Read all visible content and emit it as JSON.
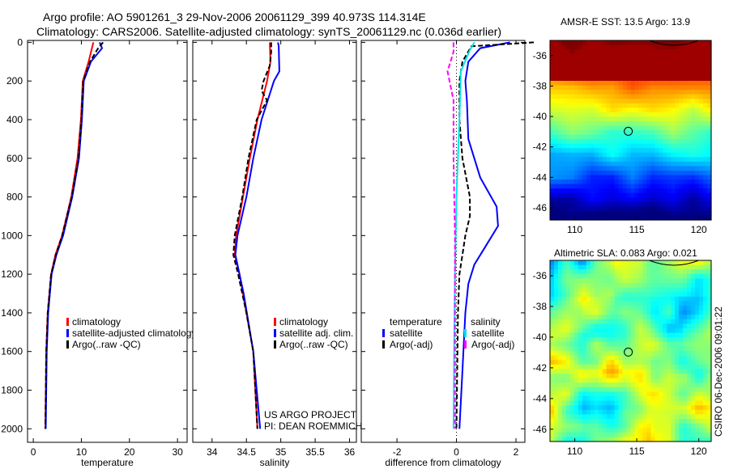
{
  "title_line1": "Argo profile: AO 5901261_3 29-Nov-2006 20061129_399 40.973S 114.314E",
  "title_line2": "Climatology: CARS2006. Satellite-adjusted climatology: synTS_20061129.nc (0.036d earlier)",
  "side_stamp": "CSIRO 06-Dec-2006 09:01:22",
  "project_line1": "US ARGO PROJECT",
  "project_line2": "PI: DEAN ROEMMICH",
  "colors": {
    "climatology": "#ff0000",
    "satellite": "#0000ff",
    "argo": "#000000",
    "sal_satellite": "#00e5e5",
    "sal_argo": "#ff00ff"
  },
  "chart_data": [
    {
      "type": "line",
      "xlabel": "temperature",
      "xlim": [
        -1.2,
        32
      ],
      "ylim": [
        2070,
        -10
      ],
      "xticks": [
        "0",
        "10",
        "20",
        "30"
      ],
      "xtickvals": [
        0,
        10,
        20,
        30
      ],
      "yticks": [
        "0",
        "200",
        "400",
        "600",
        "800",
        "1000",
        "1200",
        "1400",
        "1600",
        "1800",
        "2000"
      ],
      "legend": [
        "climatology",
        "satellite-adjusted climatology",
        "Argo(..raw -QC)"
      ],
      "series": [
        {
          "name": "climatology",
          "color": "#ff0000",
          "depth": [
            0,
            100,
            200,
            400,
            600,
            800,
            1000,
            1100,
            1200,
            1400,
            1600,
            2000
          ],
          "values": [
            12.5,
            11.5,
            10.3,
            9.9,
            9.2,
            7.9,
            6.0,
            4.6,
            3.7,
            3.0,
            2.7,
            2.5
          ]
        },
        {
          "name": "satellite",
          "color": "#0000ff",
          "depth": [
            0,
            30,
            100,
            200,
            400,
            600,
            800,
            1000,
            1100,
            1200,
            1400,
            1600,
            2000
          ],
          "values": [
            13.8,
            14.3,
            12.0,
            10.5,
            10.1,
            9.5,
            8.1,
            6.2,
            4.8,
            3.8,
            3.1,
            2.8,
            2.6
          ]
        },
        {
          "name": "argo",
          "color": "#000000",
          "dash": true,
          "depth": [
            0,
            30,
            100,
            200,
            400,
            600,
            800,
            1000,
            1100,
            1200,
            1400,
            1600,
            2000
          ],
          "values": [
            14.5,
            13.5,
            11.8,
            10.4,
            10.0,
            9.4,
            8.0,
            6.0,
            4.7,
            3.7,
            3.0,
            2.7,
            2.5
          ]
        }
      ]
    },
    {
      "type": "line",
      "xlabel": "salinity",
      "xlim": [
        33.72,
        36.1
      ],
      "ylim": [
        2070,
        -10
      ],
      "xticks": [
        "34",
        "34.5",
        "35",
        "35.5",
        "36"
      ],
      "xtickvals": [
        34,
        34.5,
        35,
        35.5,
        36
      ],
      "legend": [
        "climatology",
        "satellite adj. clim.",
        "Argo(..raw -QC)"
      ],
      "series": [
        {
          "name": "climatology",
          "color": "#ff0000",
          "depth": [
            0,
            100,
            200,
            400,
            600,
            800,
            1000,
            1100,
            1200,
            1400,
            1600,
            2000
          ],
          "values": [
            34.84,
            34.85,
            34.8,
            34.66,
            34.55,
            34.45,
            34.35,
            34.33,
            34.4,
            34.5,
            34.6,
            34.66
          ]
        },
        {
          "name": "satellite",
          "color": "#0000ff",
          "depth": [
            0,
            20,
            150,
            200,
            400,
            600,
            800,
            1000,
            1100,
            1300,
            1600,
            2000
          ],
          "values": [
            34.96,
            34.97,
            34.98,
            34.9,
            34.72,
            34.6,
            34.5,
            34.37,
            34.34,
            34.46,
            34.6,
            34.7
          ]
        },
        {
          "name": "argo",
          "color": "#000000",
          "dash": true,
          "depth": [
            0,
            50,
            120,
            200,
            250,
            300,
            400,
            600,
            800,
            1000,
            1100,
            1200,
            1400,
            1600,
            2000
          ],
          "values": [
            34.86,
            34.86,
            34.84,
            34.75,
            34.72,
            34.8,
            34.65,
            34.53,
            34.44,
            34.33,
            34.31,
            34.38,
            34.5,
            34.6,
            34.66
          ]
        }
      ]
    },
    {
      "type": "line",
      "xlabel": "difference from climatology",
      "xlim": [
        -3.2,
        2.3
      ],
      "ylim": [
        2070,
        -10
      ],
      "xticks": [
        "-2",
        "0",
        "2"
      ],
      "xtickvals": [
        -2,
        0,
        2
      ],
      "legend": {
        "temperature_head": "temperature",
        "salinity_head": "salinity",
        "items": [
          "satellite",
          "Argo(-adj)",
          "satellite",
          "Argo(-adj)"
        ]
      },
      "series": [
        {
          "name": "temperature satellite",
          "color": "#0000ff",
          "depth": [
            0,
            30,
            100,
            200,
            300,
            500,
            700,
            850,
            950,
            1050,
            1150,
            1250,
            1400,
            1700,
            2000
          ],
          "values": [
            1.8,
            0.8,
            0.4,
            0.3,
            0.35,
            0.4,
            0.8,
            1.35,
            1.4,
            1.0,
            0.6,
            0.4,
            0.3,
            0.2,
            0.1
          ]
        },
        {
          "name": "temperature argo",
          "color": "#000000",
          "dash": true,
          "depth": [
            0,
            20,
            100,
            200,
            400,
            600,
            800,
            900,
            1000,
            1100,
            1200,
            1400,
            2000
          ],
          "values": [
            2.6,
            0.5,
            0.2,
            0.1,
            0.1,
            0.2,
            0.45,
            0.45,
            0.3,
            0.2,
            0.1,
            0.05,
            0.0
          ]
        },
        {
          "name": "salinity satellite",
          "color": "#00e5e5",
          "depth": [
            0,
            40,
            150,
            400,
            800,
            1200,
            1600,
            2000
          ],
          "values": [
            0.6,
            0.45,
            0.15,
            0.1,
            0.0,
            -0.05,
            -0.08,
            -0.1
          ]
        },
        {
          "name": "salinity argo",
          "color": "#ff00ff",
          "dash": true,
          "depth": [
            0,
            50,
            150,
            300,
            600,
            1000,
            1500,
            2000
          ],
          "values": [
            -0.1,
            -0.1,
            -0.3,
            -0.1,
            -0.1,
            -0.05,
            -0.05,
            -0.05
          ]
        }
      ]
    },
    {
      "type": "heatmap",
      "title": "AMSR-E SST: 13.5 Argo: 13.9",
      "xticks": [
        "110",
        "115",
        "120"
      ],
      "yticks": [
        "-36",
        "-38",
        "-40",
        "-42",
        "-44",
        "-46"
      ],
      "xlim": [
        108,
        121
      ],
      "ylim": [
        -46.8,
        -35
      ],
      "marker": [
        114.314,
        -40.973
      ]
    },
    {
      "type": "heatmap",
      "title": "Altimetric SLA: 0.083 Argo: 0.021",
      "xticks": [
        "110",
        "115",
        "120"
      ],
      "yticks": [
        "-36",
        "-38",
        "-40",
        "-42",
        "-44",
        "-46"
      ],
      "xlim": [
        108,
        121
      ],
      "ylim": [
        -46.8,
        -35
      ],
      "marker": [
        114.314,
        -40.973
      ]
    }
  ]
}
